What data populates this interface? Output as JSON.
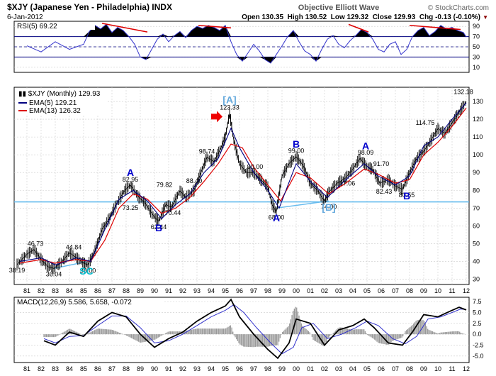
{
  "header": {
    "symbol_line": "$XJY (Japanese Yen - Philadelphia) INDX",
    "date": "6-Jan-2012",
    "subtitle": "Objective Elliott Wave",
    "brand": "© StockCharts.com",
    "quote": "Open 130.35  High 130.52  Low 129.32  Close 129.93  Chg -0.13 (-0.10%)",
    "chg_arrow": "▼"
  },
  "colors": {
    "price": "#000000",
    "ema5": "#000080",
    "ema13": "#dd0000",
    "rsi": "#3333cc",
    "macd": "#000000",
    "signal": "#3333cc",
    "hist": "#999999",
    "support": "#66bbee",
    "wave_blue": "#0000cc",
    "wave_light": "#66aadd",
    "sc": "#00bbcc",
    "trend": "#dd0000",
    "grid": "#cccccc"
  },
  "chart_data": [
    {
      "type": "line",
      "panel": "rsi",
      "title": "RSI(5) 69.22",
      "ylim": [
        0,
        100
      ],
      "yticks": [
        10,
        30,
        50,
        70,
        90
      ],
      "levels": [
        30,
        70
      ],
      "x": [
        1981.0,
        1982.0,
        1983.0,
        1984.0,
        1985.0,
        1985.4,
        1985.8,
        1986.2,
        1986.6,
        1987.0,
        1987.4,
        1987.8,
        1988.2,
        1988.6,
        1989.0,
        1989.4,
        1989.8,
        1990.2,
        1990.6,
        1991.0,
        1991.4,
        1991.8,
        1992.2,
        1992.6,
        1993.0,
        1993.4,
        1993.8,
        1994.2,
        1994.6,
        1995.0,
        1995.4,
        1995.8,
        1996.2,
        1996.6,
        1997.0,
        1997.4,
        1997.8,
        1998.2,
        1998.6,
        1999.0,
        1999.4,
        1999.8,
        2000.2,
        2000.6,
        2001.0,
        2001.4,
        2001.8,
        2002.2,
        2002.6,
        2003.0,
        2003.4,
        2003.8,
        2004.2,
        2004.6,
        2005.0,
        2005.4,
        2005.8,
        2006.2,
        2006.6,
        2007.0,
        2007.4,
        2007.8,
        2008.2,
        2008.6,
        2009.0,
        2009.4,
        2009.8,
        2010.2,
        2010.6,
        2011.0,
        2011.4,
        2011.8,
        2012.0
      ],
      "y": [
        52,
        40,
        60,
        45,
        55,
        80,
        92,
        85,
        94,
        78,
        88,
        82,
        70,
        55,
        30,
        25,
        45,
        65,
        75,
        60,
        72,
        80,
        68,
        82,
        90,
        86,
        92,
        88,
        82,
        92,
        60,
        35,
        22,
        38,
        55,
        42,
        25,
        18,
        35,
        52,
        70,
        82,
        60,
        42,
        35,
        22,
        45,
        65,
        72,
        55,
        48,
        62,
        72,
        84,
        78,
        65,
        45,
        40,
        55,
        60,
        35,
        45,
        70,
        82,
        88,
        72,
        80,
        92,
        85,
        88,
        82,
        78,
        69.22
      ],
      "trendlines": [
        {
          "x": [
            1986.3,
            1989.5
          ],
          "y": [
            96,
            79
          ]
        },
        {
          "x": [
            1993.1,
            1995.4
          ],
          "y": [
            92,
            87
          ]
        },
        {
          "x": [
            2003.7,
            2005.1
          ],
          "y": [
            94,
            79
          ]
        },
        {
          "x": [
            2008.0,
            2011.6
          ],
          "y": [
            92,
            84
          ]
        }
      ]
    },
    {
      "type": "line",
      "panel": "price",
      "title": "$XJY (Monthly) 129.93",
      "xlim": [
        1980.1,
        2012.2
      ],
      "xticks": [
        "81",
        "82",
        "83",
        "84",
        "85",
        "86",
        "87",
        "88",
        "89",
        "90",
        "91",
        "92",
        "93",
        "94",
        "95",
        "96",
        "97",
        "98",
        "99",
        "00",
        "01",
        "02",
        "03",
        "04",
        "05",
        "06",
        "07",
        "08",
        "09",
        "10",
        "11",
        "12"
      ],
      "ylim": [
        27,
        138
      ],
      "yticks": [
        30,
        40,
        50,
        60,
        70,
        80,
        90,
        100,
        110,
        120,
        130
      ],
      "series": [
        {
          "name": "$XJY (Monthly) 129.93",
          "key": "price",
          "x": [
            1980.3,
            1981.0,
            1981.5,
            1982.0,
            1982.5,
            1982.9,
            1983.5,
            1984.0,
            1984.5,
            1985.0,
            1985.3,
            1985.8,
            1986.3,
            1986.8,
            1987.3,
            1987.9,
            1988.3,
            1988.9,
            1989.3,
            1989.9,
            1990.3,
            1990.8,
            1991.2,
            1991.8,
            1992.2,
            1992.8,
            1993.2,
            1993.7,
            1994.2,
            1994.7,
            1995.0,
            1995.3,
            1995.6,
            1996.0,
            1996.5,
            1997.0,
            1997.5,
            1998.0,
            1998.3,
            1998.6,
            1999.0,
            1999.5,
            2000.0,
            2000.5,
            2001.0,
            2001.5,
            2002.0,
            2002.3,
            2002.9,
            2003.5,
            2004.0,
            2004.5,
            2004.9,
            2005.4,
            2005.9,
            2006.5,
            2007.0,
            2007.5,
            2008.0,
            2008.5,
            2009.0,
            2009.5,
            2010.0,
            2010.5,
            2011.0,
            2011.5,
            2012.0
          ],
          "y": [
            38.19,
            44,
            46.73,
            41,
            37,
            36.04,
            40,
            44.84,
            42,
            39,
            38.0,
            46,
            58,
            64,
            72,
            80,
            82.95,
            76,
            73.25,
            66,
            62.44,
            72,
            70.44,
            79.82,
            76,
            80,
            88.4,
            98.74,
            96,
            104,
            110,
            123.33,
            108,
            95,
            90,
            90.0,
            86,
            82,
            72,
            68.0,
            88,
            95,
            99.0,
            94,
            84,
            80,
            74.0,
            79,
            84,
            87.06,
            92,
            98.09,
            94,
            91.7,
            84,
            86,
            82.43,
            80.55,
            90,
            98,
            102,
            108,
            114.75,
            112,
            118,
            124,
            129.93
          ],
          "labels": [
            {
              "x": 1980.3,
              "y": 38.19,
              "text": "38.19",
              "pos": "below"
            },
            {
              "x": 1981.6,
              "y": 46.73,
              "text": "46.73",
              "pos": "above"
            },
            {
              "x": 1982.9,
              "y": 36.04,
              "text": "36.04",
              "pos": "below"
            },
            {
              "x": 1984.3,
              "y": 44.84,
              "text": "44.84",
              "pos": "above"
            },
            {
              "x": 1985.3,
              "y": 38.0,
              "text": "38.00",
              "pos": "below"
            },
            {
              "x": 1988.3,
              "y": 82.95,
              "text": "82.95",
              "pos": "above"
            },
            {
              "x": 1988.3,
              "y": 73.25,
              "text": "73.25",
              "pos": "below"
            },
            {
              "x": 1990.3,
              "y": 62.44,
              "text": "62.44",
              "pos": "below"
            },
            {
              "x": 1990.7,
              "y": 79.82,
              "text": "79.82",
              "pos": "above"
            },
            {
              "x": 1991.3,
              "y": 70.44,
              "text": "70.44",
              "pos": "below"
            },
            {
              "x": 1992.8,
              "y": 88.4,
              "text": "88.40",
              "pos": "below"
            },
            {
              "x": 1993.7,
              "y": 98.74,
              "text": "98.74",
              "pos": "above"
            },
            {
              "x": 1995.3,
              "y": 123.33,
              "text": "123.33",
              "pos": "above"
            },
            {
              "x": 1997.1,
              "y": 90.0,
              "text": "90.00",
              "pos": "above"
            },
            {
              "x": 1998.6,
              "y": 68.0,
              "text": "68.00",
              "pos": "below"
            },
            {
              "x": 2000.0,
              "y": 99.0,
              "text": "99.00",
              "pos": "above"
            },
            {
              "x": 2002.3,
              "y": 74.0,
              "text": "74.00",
              "pos": "below"
            },
            {
              "x": 2003.6,
              "y": 87.06,
              "text": "87.06",
              "pos": "below"
            },
            {
              "x": 2004.9,
              "y": 98.09,
              "text": "98.09",
              "pos": "above"
            },
            {
              "x": 2006.0,
              "y": 91.7,
              "text": "91.70",
              "pos": "above"
            },
            {
              "x": 2006.2,
              "y": 82.43,
              "text": "82.43",
              "pos": "below"
            },
            {
              "x": 2007.8,
              "y": 80.55,
              "text": "80.55",
              "pos": "below"
            },
            {
              "x": 2009.1,
              "y": 114.75,
              "text": "114.75",
              "pos": "above"
            },
            {
              "x": 2011.8,
              "y": 132.18,
              "text": "132.18",
              "pos": "above"
            }
          ]
        },
        {
          "name": "EMA(5) 129.21",
          "key": "ema5",
          "x": [
            1980.5,
            1982.0,
            1983.0,
            1984.5,
            1985.5,
            1986.5,
            1987.5,
            1988.5,
            1989.5,
            1990.5,
            1991.5,
            1992.5,
            1993.5,
            1994.5,
            1995.4,
            1996.0,
            1997.0,
            1998.0,
            1998.8,
            2000.0,
            2001.0,
            2002.2,
            2003.5,
            2004.8,
            2005.8,
            2007.0,
            2008.0,
            2009.0,
            2010.0,
            2011.0,
            2012.0
          ],
          "y": [
            40,
            42,
            38,
            42,
            40,
            58,
            75,
            80,
            74,
            64,
            72,
            78,
            90,
            98,
            115,
            104,
            90,
            80,
            70,
            95,
            85,
            76,
            86,
            95,
            88,
            83,
            88,
            105,
            110,
            120,
            129.21
          ]
        },
        {
          "name": "EMA(13) 126.32",
          "key": "ema13",
          "x": [
            1980.5,
            1982.0,
            1983.0,
            1984.5,
            1985.5,
            1986.5,
            1987.5,
            1988.5,
            1989.5,
            1990.5,
            1991.5,
            1992.5,
            1993.5,
            1994.5,
            1995.4,
            1996.2,
            1997.0,
            1998.0,
            1998.9,
            2000.0,
            2001.0,
            2002.3,
            2003.5,
            2004.8,
            2005.8,
            2007.0,
            2008.0,
            2009.0,
            2010.0,
            2011.0,
            2012.0
          ],
          "y": [
            39,
            41,
            39,
            41,
            40,
            52,
            70,
            78,
            75,
            67,
            70,
            76,
            85,
            95,
            106,
            104,
            93,
            83,
            74,
            90,
            87,
            78,
            84,
            92,
            89,
            84,
            86,
            100,
            107,
            116,
            126.32
          ]
        }
      ],
      "support_level": 73.5,
      "sc_trendline": {
        "x": [
          1982.9,
          1985.3
        ],
        "y": [
          36.04,
          40
        ]
      },
      "b_trendline": {
        "x": [
          1998.6,
          2002.3
        ],
        "y": [
          70,
          74
        ]
      },
      "wave_labels": [
        {
          "x": 1988.3,
          "y": 88.0,
          "text": "A",
          "style": "blue"
        },
        {
          "x": 1990.3,
          "y": 57.0,
          "text": "B",
          "style": "blue"
        },
        {
          "x": 1995.3,
          "y": 129.0,
          "text": "[A]",
          "style": "light"
        },
        {
          "x": 1998.6,
          "y": 62.5,
          "text": "A",
          "style": "blue"
        },
        {
          "x": 2000.0,
          "y": 104.0,
          "text": "B",
          "style": "blue"
        },
        {
          "x": 2002.3,
          "y": 68.5,
          "text": "[B]",
          "style": "light"
        },
        {
          "x": 2004.9,
          "y": 103.0,
          "text": "A",
          "style": "blue"
        },
        {
          "x": 2007.8,
          "y": 75.0,
          "text": "B",
          "style": "blue"
        },
        {
          "x": 1985.2,
          "y": 32.5,
          "text": "SC",
          "style": "sc"
        }
      ],
      "arrow": {
        "x": 1994.7,
        "y": 121.5
      }
    },
    {
      "type": "line",
      "panel": "macd",
      "title": "MACD(12,26,9) 5.586, 5.658, -0.072",
      "ylim": [
        -6.5,
        8.5
      ],
      "yticks": [
        -5.0,
        -2.5,
        0.0,
        2.5,
        5.0,
        7.5
      ],
      "series": [
        {
          "name": "MACD",
          "key": "macd",
          "x": [
            1982.2,
            1983.0,
            1984.0,
            1985.0,
            1986.0,
            1987.0,
            1988.0,
            1989.0,
            1990.0,
            1991.0,
            1992.0,
            1993.0,
            1994.0,
            1995.0,
            1995.4,
            1996.0,
            1997.0,
            1998.0,
            1998.7,
            1999.5,
            2000.0,
            2001.0,
            2002.0,
            2003.0,
            2004.0,
            2004.8,
            2005.5,
            2006.5,
            2007.5,
            2008.2,
            2009.0,
            2010.0,
            2011.0,
            2011.5,
            2012.0
          ],
          "y": [
            -1.5,
            -2.5,
            0.5,
            -0.5,
            3.0,
            5.0,
            4.0,
            0.0,
            -3.0,
            -1.0,
            0.5,
            3.0,
            5.0,
            6.5,
            8.0,
            4.0,
            0.0,
            -3.5,
            -5.5,
            -2.0,
            3.5,
            2.5,
            -2.5,
            1.0,
            2.0,
            3.5,
            1.5,
            -2.0,
            -2.5,
            0.5,
            4.5,
            4.0,
            5.5,
            6.2,
            5.586
          ]
        },
        {
          "name": "Signal",
          "key": "signal",
          "x": [
            1982.2,
            1983.0,
            1984.0,
            1985.0,
            1986.0,
            1987.0,
            1988.0,
            1989.0,
            1990.0,
            1991.0,
            1992.0,
            1993.0,
            1994.0,
            1995.0,
            1995.6,
            1996.3,
            1997.2,
            1998.2,
            1999.0,
            1999.8,
            2000.4,
            2001.2,
            2002.2,
            2003.2,
            2004.2,
            2005.0,
            2005.8,
            2006.8,
            2007.7,
            2008.5,
            2009.3,
            2010.2,
            2011.0,
            2011.6,
            2012.0
          ],
          "y": [
            -1.0,
            -2.0,
            -0.5,
            -0.3,
            2.0,
            4.2,
            4.2,
            1.5,
            -2.0,
            -1.5,
            0.0,
            2.0,
            4.0,
            5.5,
            6.8,
            5.0,
            1.5,
            -2.0,
            -4.5,
            -3.0,
            1.5,
            2.5,
            -1.0,
            0.0,
            1.5,
            3.0,
            2.0,
            -1.0,
            -2.2,
            -0.5,
            3.5,
            4.0,
            5.0,
            5.8,
            5.658
          ]
        }
      ]
    }
  ]
}
